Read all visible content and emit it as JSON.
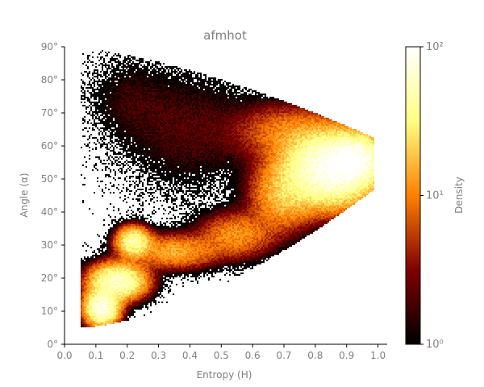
{
  "chart_data": {
    "type": "heatmap",
    "title": "afmhot",
    "xlabel": "Entropy (H)",
    "ylabel": "Angle (α)",
    "xlim": [
      0.0,
      1.05
    ],
    "ylim": [
      0,
      90
    ],
    "x_ticks": [
      0.0,
      0.1,
      0.2,
      0.3,
      0.4,
      0.5,
      0.6,
      0.7,
      0.8,
      0.9,
      1.0
    ],
    "x_tick_labels": [
      "0.0",
      "0.1",
      "0.2",
      "0.3",
      "0.4",
      "0.5",
      "0.6",
      "0.7",
      "0.8",
      "0.9",
      "1.0"
    ],
    "y_ticks": [
      0,
      10,
      20,
      30,
      40,
      50,
      60,
      70,
      80,
      90
    ],
    "y_tick_labels": [
      "0°",
      "10°",
      "20°",
      "30°",
      "40°",
      "50°",
      "60°",
      "70°",
      "80°",
      "90°"
    ],
    "colormap": "afmhot",
    "colorbar": {
      "label": "Density",
      "scale": "log",
      "range": [
        1,
        100
      ],
      "ticks": [
        1,
        10,
        100
      ],
      "tick_labels": [
        "10⁰",
        "10¹",
        "10²"
      ]
    },
    "density_regions": [
      {
        "h": 0.12,
        "alpha": 11,
        "sh": 0.03,
        "sa": 3,
        "density": 80
      },
      {
        "h": 0.17,
        "alpha": 19,
        "sh": 0.05,
        "sa": 3,
        "density": 60
      },
      {
        "h": 0.22,
        "alpha": 31,
        "sh": 0.03,
        "sa": 2.5,
        "density": 45
      },
      {
        "h": 0.35,
        "alpha": 28,
        "sh": 0.08,
        "sa": 3,
        "density": 15
      },
      {
        "h": 0.55,
        "alpha": 33,
        "sh": 0.07,
        "sa": 4,
        "density": 12
      },
      {
        "h": 0.7,
        "alpha": 45,
        "sh": 0.06,
        "sa": 6,
        "density": 18
      },
      {
        "h": 0.85,
        "alpha": 53,
        "sh": 0.08,
        "sa": 6,
        "density": 95
      },
      {
        "h": 0.93,
        "alpha": 56,
        "sh": 0.05,
        "sa": 4,
        "density": 70
      },
      {
        "h": 0.72,
        "alpha": 64,
        "sh": 0.1,
        "sa": 5,
        "density": 10
      },
      {
        "h": 0.4,
        "alpha": 65,
        "sh": 0.14,
        "sa": 12,
        "density": 2
      },
      {
        "h": 0.2,
        "alpha": 75,
        "sh": 0.08,
        "sa": 8,
        "density": 1.2
      }
    ]
  }
}
